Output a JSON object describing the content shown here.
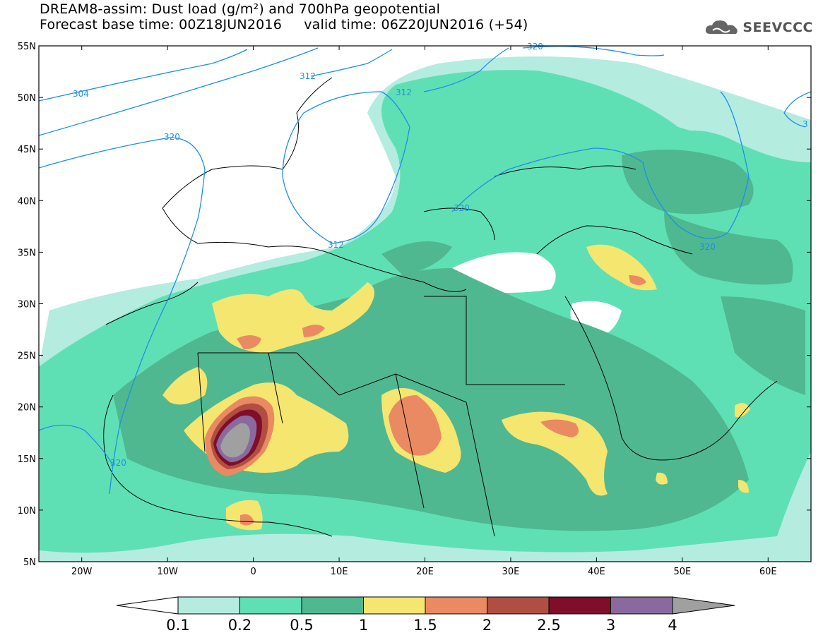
{
  "header": {
    "title": "DREAM8-assim: Dust load (g/m²) and 700hPa geopotential",
    "subtitle_base": "Forecast base time: 00Z18JUN2016",
    "subtitle_valid": "valid time: 06Z20JUN2016 (+54)"
  },
  "logo": {
    "text": "SEEVCCC",
    "icon": "cloud-icon"
  },
  "map": {
    "lon_range": [
      -25,
      65
    ],
    "lat_range": [
      5,
      55
    ],
    "lat_ticks": [
      "5N",
      "10N",
      "15N",
      "20N",
      "25N",
      "30N",
      "35N",
      "40N",
      "45N",
      "50N",
      "55N"
    ],
    "lon_ticks": [
      "20W",
      "10W",
      "0",
      "10E",
      "20E",
      "30E",
      "40E",
      "50E",
      "60E"
    ],
    "contour_labels": [
      "304",
      "312",
      "312",
      "312",
      "320",
      "320",
      "320",
      "320",
      "320",
      "3"
    ],
    "contour_color": "#1e8fe6"
  },
  "colorbar": {
    "labels": [
      "0.1",
      "0.2",
      "0.5",
      "1",
      "1.5",
      "2",
      "2.5",
      "3",
      "4"
    ],
    "colors": [
      "#b4ece0",
      "#5fe0b4",
      "#4fb890",
      "#f5e670",
      "#ea8a62",
      "#b04e42",
      "#7e0e2a",
      "#8a6a9e",
      "#a0a0a0"
    ]
  }
}
